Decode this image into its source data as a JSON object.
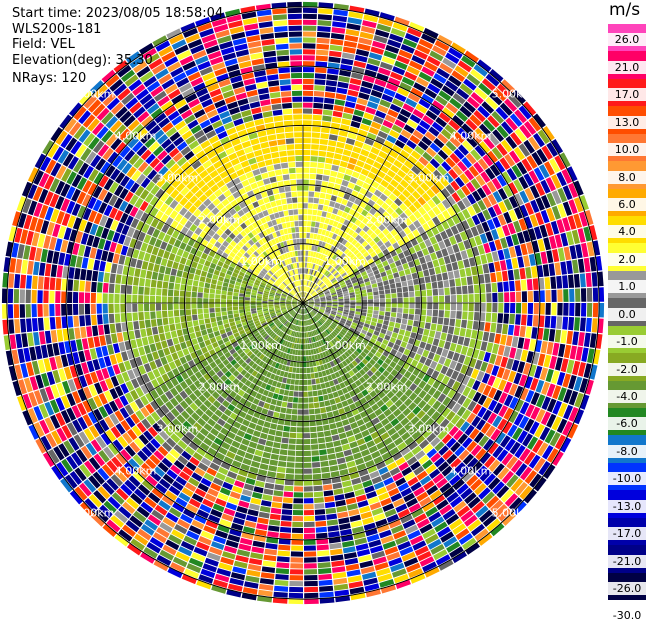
{
  "header": {
    "start_time": "Start time: 2023/08/05 18:58:04",
    "instrument": "WLS200s-181",
    "field": "Field: VEL",
    "elevation": "Elevation(deg): 35.30",
    "nrays": "NRays: 120"
  },
  "colorbar": {
    "unit": "m/s",
    "labels": [
      "26.0",
      "21.0",
      "17.0",
      "13.0",
      "10.0",
      "8.0",
      "6.0",
      "4.0",
      "2.0",
      "1.0",
      "0.0",
      "-1.0",
      "-2.0",
      "-4.0",
      "-6.0",
      "-8.0",
      "-10.0",
      "-13.0",
      "-17.0",
      "-21.0",
      "-26.0",
      "-30.0"
    ],
    "colors": [
      "#ff44bb",
      "#ff0066",
      "#ff1a1a",
      "#ff4d00",
      "#ff7733",
      "#ff9933",
      "#ffaa00",
      "#ffdd00",
      "#ffff33",
      "#999999",
      "#666666",
      "#99cc33",
      "#88aa22",
      "#669933",
      "#228822",
      "#1177cc",
      "#0033ff",
      "#0000dd",
      "#0000aa",
      "#000088",
      "#000044"
    ]
  },
  "chart_data": {
    "type": "heatmap",
    "title": "",
    "field": "VEL",
    "unit": "m/s",
    "n_rays": 120,
    "elevation_deg": 35.3,
    "range_rings": [
      {
        "range_km": 1.0,
        "label": "1.00km"
      },
      {
        "range_km": 2.0,
        "label": "2.00km"
      },
      {
        "range_km": 3.0,
        "label": "3.00km"
      },
      {
        "range_km": 4.0,
        "label": "4.00km"
      },
      {
        "range_km": 5.0,
        "label": "5.00km"
      }
    ],
    "max_range_km": 5.1,
    "spokes_deg": [
      0,
      30,
      60,
      90,
      120,
      150,
      180,
      210,
      240,
      270,
      300,
      330
    ],
    "sectors": [
      {
        "name": "north",
        "azimuth_deg": [
          300,
          60
        ],
        "range_km": [
          0,
          3.0
        ],
        "velocity_ms": 2.5
      },
      {
        "name": "north-outer",
        "azimuth_deg": [
          310,
          50
        ],
        "range_km": [
          2.4,
          3.2
        ],
        "velocity_ms": 5.0
      },
      {
        "name": "south",
        "azimuth_deg": [
          120,
          240
        ],
        "range_km": [
          0,
          3.0
        ],
        "velocity_ms": -3.0
      },
      {
        "name": "west",
        "azimuth_deg": [
          240,
          300
        ],
        "range_km": [
          0,
          2.8
        ],
        "velocity_ms": -1.5
      },
      {
        "name": "east",
        "azimuth_deg": [
          60,
          120
        ],
        "range_km": [
          0,
          2.8
        ],
        "velocity_ms": 0.3
      }
    ],
    "noise_beyond_km": 3.1
  }
}
